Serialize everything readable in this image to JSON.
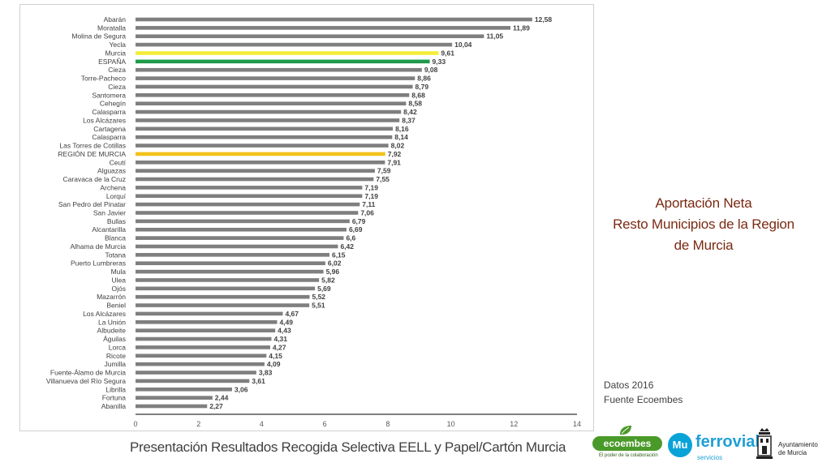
{
  "chart_data": {
    "type": "bar",
    "orientation": "horizontal",
    "categories": [
      "Abarán",
      "Moratalla",
      "Molina de Segura",
      "Yecla",
      "Murcia",
      "ESPAÑA",
      "Cieza",
      "Torre-Pacheco",
      "Cieza",
      "Santomera",
      "Cehegín",
      "Calasparra",
      "Los Alcázares",
      "Cartagena",
      "Calasparra",
      "Las Torres de Cotillas",
      "REGIÓN DE MURCIA",
      "Ceutí",
      "Alguazas",
      "Caravaca de la Cruz",
      "Archena",
      "Lorquí",
      "San Pedro del Pinatar",
      "San Javier",
      "Bullas",
      "Alcantarilla",
      "Blanca",
      "Alhama de Murcia",
      "Totana",
      "Puerto Lumbreras",
      "Mula",
      "Ulea",
      "Ojós",
      "Mazarrón",
      "Beniel",
      "Los Alcázares",
      "La Unión",
      "Albudeite",
      "Águilas",
      "Lorca",
      "Ricote",
      "Jumilla",
      "Fuente-Álamo de Murcia",
      "Villanueva del Río Segura",
      "Librilla",
      "Fortuna",
      "Abanilla"
    ],
    "values": [
      12.58,
      11.89,
      11.05,
      10.04,
      9.61,
      9.33,
      9.08,
      8.86,
      8.79,
      8.68,
      8.58,
      8.42,
      8.37,
      8.16,
      8.14,
      8.02,
      7.92,
      7.91,
      7.59,
      7.55,
      7.19,
      7.19,
      7.11,
      7.06,
      6.79,
      6.69,
      6.6,
      6.42,
      6.15,
      6.02,
      5.96,
      5.82,
      5.69,
      5.52,
      5.51,
      4.67,
      4.49,
      4.43,
      4.31,
      4.27,
      4.15,
      4.09,
      3.83,
      3.61,
      3.06,
      2.44,
      2.27
    ],
    "value_labels": [
      "12,58",
      "11,89",
      "11,05",
      "10,04",
      "9,61",
      "9,33",
      "9,08",
      "8,86",
      "8,79",
      "8,68",
      "8,58",
      "8,42",
      "8,37",
      "8,16",
      "8,14",
      "8,02",
      "7,92",
      "7,91",
      "7,59",
      "7,55",
      "7,19",
      "7,19",
      "7,11",
      "7,06",
      "6,79",
      "6,69",
      "6,6",
      "6,42",
      "6,15",
      "6,02",
      "5,96",
      "5,82",
      "5,69",
      "5,52",
      "5,51",
      "4,67",
      "4,49",
      "4,43",
      "4,31",
      "4,27",
      "4,15",
      "4,09",
      "3,83",
      "3,61",
      "3,06",
      "2,44",
      "2,27"
    ],
    "xlim": [
      0,
      14
    ],
    "xticks": [
      0,
      2,
      4,
      6,
      8,
      10,
      12,
      14
    ],
    "grid": false,
    "colors": {
      "default": "#7f7f7f",
      "Murcia": "#f5ec3a",
      "ESPAÑA": "#1f9a4a",
      "REGIÓN DE MURCIA": "#f2c21a"
    },
    "highlight_indices": {
      "4": "#f5ec3a",
      "5": "#1f9a4a",
      "16": "#f2c21a"
    }
  },
  "side_title": {
    "line1": "Aportación Neta",
    "line2": "Resto Municipios de la Region",
    "line3": "de Murcia"
  },
  "notes": {
    "year": "Datos 2016",
    "source": "Fuente Ecoembes"
  },
  "footer": {
    "text": "Presentación Resultados Recogida Selectiva EELL y Papel/Cartón Murcia"
  },
  "logos": {
    "ecoembes_name": "ecoembes",
    "ecoembes_tagline": "El poder de la colaboración",
    "ferrovial_mark": "Mu",
    "ferrovial_name": "ferrovial",
    "ferrovial_tagline": "servicios",
    "ayuntamiento_line1": "Ayuntamiento",
    "ayuntamiento_line2": "de Murcia",
    "icons": [
      "leaf-icon",
      "crest-icon"
    ],
    "colors": {
      "ecoembes": "#4a9a2a",
      "ferrovial": "#1e9fd6"
    }
  }
}
